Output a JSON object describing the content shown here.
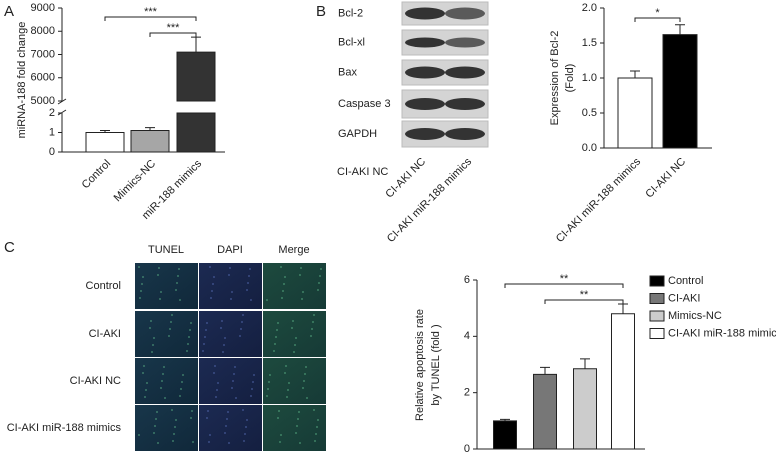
{
  "panel_labels": [
    "A",
    "B",
    "C"
  ],
  "blot": {
    "proteins": [
      "Bcl-2",
      "Bcl-xl",
      "Bax",
      "Caspase 3",
      "GAPDH"
    ],
    "lanes": [
      "CI-AKI NC",
      "CI-AKI miR-188 mimics"
    ],
    "group_label": "CI-AKI NC"
  },
  "microscopy": {
    "columns": [
      "TUNEL",
      "DAPI",
      "Merge"
    ],
    "rows": [
      "Control",
      "CI-AKI",
      "CI-AKI NC",
      "CI-AKI miR-188 mimics"
    ]
  },
  "chart_data": [
    {
      "type": "bar",
      "ylabel": "miRNA-188 fold change",
      "categories": [
        "Control",
        "Mimics-NC",
        "miR-188 mimics"
      ],
      "values": [
        1,
        1.1,
        7100
      ],
      "errors": [
        0.1,
        0.15,
        650
      ],
      "colors": [
        "#ffffff",
        "#a6a6a6",
        "#333333"
      ],
      "segments": [
        {
          "ylim": [
            0,
            2
          ],
          "yticks": [
            0,
            1,
            2
          ]
        },
        {
          "ylim": [
            5000,
            9000
          ],
          "yticks": [
            5000,
            6000,
            7000,
            8000,
            9000
          ]
        }
      ],
      "annotations": [
        "***",
        "***"
      ]
    },
    {
      "type": "bar",
      "ylabel": [
        "Expression of Bcl-2",
        "(Fold)"
      ],
      "categories": [
        "CI-AKI miR-188 mimics",
        "CI-AKI NC"
      ],
      "values": [
        1.0,
        1.62
      ],
      "errors": [
        0.1,
        0.14
      ],
      "colors": [
        "#ffffff",
        "#000000"
      ],
      "ylim": [
        0,
        2
      ],
      "yticks": [
        {
          "value": 0,
          "label": "0.0"
        },
        0.5,
        {
          "value": 1,
          "label": "1.0"
        },
        1.5,
        {
          "value": 2,
          "label": "2.0"
        }
      ],
      "annotations": [
        "*"
      ]
    },
    {
      "type": "bar",
      "ylabel": [
        "Relative apoptosis rate",
        "by TUNEL (fold )"
      ],
      "categories": [
        "Control",
        "CI-AKI",
        "Mimics-NC",
        "CI-AKI miR-188 mimics"
      ],
      "values": [
        1.0,
        2.65,
        2.85,
        4.8
      ],
      "errors": [
        0.05,
        0.25,
        0.35,
        0.35
      ],
      "colors": [
        "#000000",
        "#777777",
        "#cccccc",
        "#ffffff"
      ],
      "ylim": [
        0,
        6
      ],
      "yticks": [
        0,
        2,
        4,
        6
      ],
      "legend": true,
      "annotations": [
        "**",
        "**"
      ]
    }
  ]
}
